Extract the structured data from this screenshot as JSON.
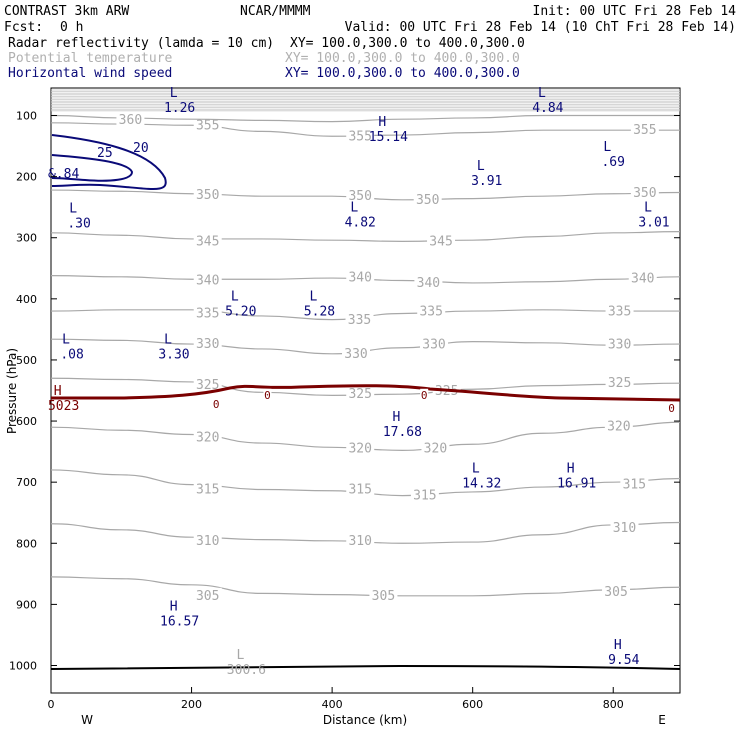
{
  "header": {
    "model": "CONTRAST  3km ARW",
    "org": "NCAR/MMMM",
    "init": "Init: 00 UTC Fri 28 Feb 14",
    "fcst_label": "Fcst:",
    "fcst_value": "0 h",
    "valid": "Valid: 00 UTC Fri 28 Feb 14 (10 ChT Fri 28 Feb 14)",
    "fields": [
      {
        "name": "Radar reflectivity (lamda = 10 cm)",
        "xy": "XY= 100.0,300.0 to 400.0,300.0",
        "color": "#000000"
      },
      {
        "name": "Potential temperature",
        "xy": "XY= 100.0,300.0 to 400.0,300.0",
        "color": "#b0b0b0"
      },
      {
        "name": "Horizontal wind speed",
        "xy": "XY= 100.0,300.0 to 400.0,300.0",
        "color": "#0a0a78"
      }
    ]
  },
  "colors": {
    "theta": "#a8a8a8",
    "wind": "#0a0a78",
    "reflectivity": "#7a0000",
    "surface": "#000000"
  },
  "chart_data": {
    "type": "cross-section",
    "xlabel": "Distance (km)",
    "ylabel": "Pressure (hPa)",
    "xlim": [
      0,
      895
    ],
    "ylim": [
      1045,
      55
    ],
    "x_ticks": [
      0,
      200,
      400,
      600,
      800
    ],
    "y_ticks": [
      100,
      200,
      300,
      400,
      500,
      600,
      700,
      800,
      900,
      1000
    ],
    "left_end_label": "W",
    "right_end_label": "E",
    "theta_contours": [
      {
        "value": 305,
        "labels": [
          {
            "text": "305",
            "x": 223,
            "p": 886
          },
          {
            "text": "305",
            "x": 473,
            "p": 886
          },
          {
            "text": "305",
            "x": 804,
            "p": 880
          }
        ],
        "points": [
          [
            0,
            855
          ],
          [
            100,
            858
          ],
          [
            200,
            868
          ],
          [
            300,
            882
          ],
          [
            400,
            884
          ],
          [
            500,
            886
          ],
          [
            600,
            886
          ],
          [
            700,
            882
          ],
          [
            800,
            876
          ],
          [
            895,
            872
          ]
        ]
      },
      {
        "value": 310,
        "labels": [
          {
            "text": "310",
            "x": 223,
            "p": 796
          },
          {
            "text": "310",
            "x": 440,
            "p": 796
          },
          {
            "text": "310",
            "x": 816,
            "p": 775
          }
        ],
        "points": [
          [
            0,
            768
          ],
          [
            100,
            778
          ],
          [
            200,
            790
          ],
          [
            300,
            794
          ],
          [
            400,
            796
          ],
          [
            500,
            800
          ],
          [
            600,
            798
          ],
          [
            700,
            786
          ],
          [
            800,
            770
          ],
          [
            895,
            766
          ]
        ]
      },
      {
        "value": 315,
        "labels": [
          {
            "text": "315",
            "x": 223,
            "p": 712
          },
          {
            "text": "315",
            "x": 440,
            "p": 712
          },
          {
            "text": "315",
            "x": 532,
            "p": 722
          },
          {
            "text": "315",
            "x": 830,
            "p": 704
          }
        ],
        "points": [
          [
            0,
            680
          ],
          [
            100,
            688
          ],
          [
            200,
            704
          ],
          [
            300,
            712
          ],
          [
            400,
            714
          ],
          [
            500,
            722
          ],
          [
            600,
            716
          ],
          [
            700,
            708
          ],
          [
            800,
            700
          ],
          [
            895,
            694
          ]
        ]
      },
      {
        "value": 320,
        "labels": [
          {
            "text": "320",
            "x": 223,
            "p": 627
          },
          {
            "text": "320",
            "x": 440,
            "p": 645
          },
          {
            "text": "320",
            "x": 547,
            "p": 645
          },
          {
            "text": "320",
            "x": 808,
            "p": 609
          }
        ],
        "points": [
          [
            0,
            610
          ],
          [
            100,
            615
          ],
          [
            200,
            622
          ],
          [
            300,
            636
          ],
          [
            400,
            643
          ],
          [
            500,
            648
          ],
          [
            600,
            638
          ],
          [
            700,
            620
          ],
          [
            800,
            610
          ],
          [
            895,
            602
          ]
        ]
      },
      {
        "value": 325,
        "labels": [
          {
            "text": "325",
            "x": 223,
            "p": 541
          },
          {
            "text": "325",
            "x": 440,
            "p": 556
          },
          {
            "text": "325",
            "x": 563,
            "p": 551
          },
          {
            "text": "325",
            "x": 809,
            "p": 538
          }
        ],
        "points": [
          [
            0,
            530
          ],
          [
            100,
            532
          ],
          [
            200,
            536
          ],
          [
            300,
            553
          ],
          [
            400,
            558
          ],
          [
            500,
            556
          ],
          [
            600,
            548
          ],
          [
            700,
            542
          ],
          [
            800,
            540
          ],
          [
            895,
            538
          ]
        ]
      },
      {
        "value": 330,
        "labels": [
          {
            "text": "330",
            "x": 223,
            "p": 474
          },
          {
            "text": "330",
            "x": 434,
            "p": 490
          },
          {
            "text": "330",
            "x": 545,
            "p": 475
          },
          {
            "text": "330",
            "x": 809,
            "p": 475
          }
        ],
        "points": [
          [
            0,
            466
          ],
          [
            100,
            468
          ],
          [
            200,
            474
          ],
          [
            300,
            482
          ],
          [
            400,
            490
          ],
          [
            500,
            480
          ],
          [
            600,
            470
          ],
          [
            700,
            472
          ],
          [
            800,
            476
          ],
          [
            895,
            474
          ]
        ]
      },
      {
        "value": 335,
        "labels": [
          {
            "text": "335",
            "x": 223,
            "p": 424
          },
          {
            "text": "335",
            "x": 439,
            "p": 435
          },
          {
            "text": "335",
            "x": 541,
            "p": 421
          },
          {
            "text": "335",
            "x": 809,
            "p": 421
          }
        ],
        "points": [
          [
            0,
            420
          ],
          [
            100,
            418
          ],
          [
            200,
            418
          ],
          [
            300,
            428
          ],
          [
            400,
            434
          ],
          [
            500,
            424
          ],
          [
            600,
            420
          ],
          [
            700,
            418
          ],
          [
            800,
            420
          ],
          [
            895,
            420
          ]
        ]
      },
      {
        "value": 340,
        "labels": [
          {
            "text": "340",
            "x": 223,
            "p": 370
          },
          {
            "text": "340",
            "x": 440,
            "p": 365
          },
          {
            "text": "340",
            "x": 537,
            "p": 374
          },
          {
            "text": "340",
            "x": 842,
            "p": 367
          }
        ],
        "points": [
          [
            0,
            362
          ],
          [
            100,
            364
          ],
          [
            200,
            368
          ],
          [
            300,
            368
          ],
          [
            400,
            366
          ],
          [
            500,
            370
          ],
          [
            600,
            374
          ],
          [
            700,
            372
          ],
          [
            800,
            368
          ],
          [
            895,
            364
          ]
        ]
      },
      {
        "value": 345,
        "labels": [
          {
            "text": "345",
            "x": 223,
            "p": 306
          },
          {
            "text": "345",
            "x": 555,
            "p": 306
          }
        ],
        "points": [
          [
            0,
            292
          ],
          [
            100,
            296
          ],
          [
            200,
            302
          ],
          [
            300,
            302
          ],
          [
            400,
            304
          ],
          [
            500,
            306
          ],
          [
            600,
            304
          ],
          [
            700,
            298
          ],
          [
            800,
            292
          ],
          [
            895,
            290
          ]
        ]
      },
      {
        "value": 350,
        "labels": [
          {
            "text": "350",
            "x": 223,
            "p": 230
          },
          {
            "text": "350",
            "x": 440,
            "p": 232
          },
          {
            "text": "350",
            "x": 536,
            "p": 238
          },
          {
            "text": "350",
            "x": 845,
            "p": 227
          }
        ],
        "points": [
          [
            0,
            222
          ],
          [
            100,
            224
          ],
          [
            200,
            228
          ],
          [
            300,
            232
          ],
          [
            400,
            232
          ],
          [
            500,
            238
          ],
          [
            600,
            236
          ],
          [
            700,
            232
          ],
          [
            800,
            228
          ],
          [
            895,
            226
          ]
        ]
      },
      {
        "value": 355,
        "labels": [
          {
            "text": "355",
            "x": 223,
            "p": 116
          },
          {
            "text": "355",
            "x": 440,
            "p": 134
          },
          {
            "text": "355",
            "x": 845,
            "p": 124
          }
        ],
        "points": [
          [
            0,
            112
          ],
          [
            100,
            114
          ],
          [
            200,
            116
          ],
          [
            300,
            126
          ],
          [
            400,
            134
          ],
          [
            500,
            132
          ],
          [
            600,
            128
          ],
          [
            700,
            124
          ],
          [
            800,
            124
          ],
          [
            895,
            124
          ]
        ]
      },
      {
        "value": 360,
        "labels": [
          {
            "text": "360",
            "x": 113,
            "p": 107
          }
        ],
        "points": [
          [
            0,
            100
          ],
          [
            100,
            104
          ],
          [
            200,
            106
          ],
          [
            300,
            108
          ],
          [
            400,
            110
          ],
          [
            500,
            106
          ],
          [
            600,
            104
          ],
          [
            700,
            100
          ],
          [
            800,
            100
          ],
          [
            895,
            100
          ]
        ]
      }
    ],
    "wind_contours": [
      {
        "value": 20,
        "label": {
          "text": "20",
          "x": 128,
          "p": 158
        }
      },
      {
        "value": 25,
        "label": {
          "text": "25",
          "x": 72,
          "p": 162
        }
      }
    ],
    "reflectivity_contours": [
      {
        "value": 0,
        "labels": [
          {
            "text": "0",
            "x": 235,
            "p": 572
          },
          {
            "text": "0",
            "x": 308,
            "p": 557
          },
          {
            "text": "0",
            "x": 531,
            "p": 557
          },
          {
            "text": "0",
            "x": 883,
            "p": 579
          }
        ]
      }
    ],
    "extrema": [
      {
        "field": "wind",
        "type": "L",
        "value": "1.26",
        "x": 183,
        "p": 75
      },
      {
        "field": "wind",
        "type": "L",
        "value": "4.84",
        "x": 707,
        "p": 75
      },
      {
        "field": "wind",
        "type": "H",
        "value": "15.14",
        "x": 480,
        "p": 122
      },
      {
        "field": "wind",
        "type": "L",
        "value": ".69",
        "x": 800,
        "p": 163
      },
      {
        "field": "wind",
        "type": "L",
        "value": "3.91",
        "x": 620,
        "p": 194
      },
      {
        "field": "wind",
        "type": "L",
        "value": ".30",
        "x": 40,
        "p": 264
      },
      {
        "field": "wind",
        "type": "L",
        "value": "4.82",
        "x": 440,
        "p": 262
      },
      {
        "field": "wind",
        "type": "L",
        "value": "3.01",
        "x": 858,
        "p": 262
      },
      {
        "field": "wind",
        "type": "L",
        "value": "5.20",
        "x": 270,
        "p": 408
      },
      {
        "field": "wind",
        "type": "L",
        "value": "5.28",
        "x": 382,
        "p": 408
      },
      {
        "field": "wind",
        "type": "L",
        "value": ".08",
        "x": 30,
        "p": 478
      },
      {
        "field": "wind",
        "type": "L",
        "value": "3.30",
        "x": 175,
        "p": 478
      },
      {
        "field": "wind",
        "type": "H",
        "value": "17.68",
        "x": 500,
        "p": 605
      },
      {
        "field": "wind",
        "type": "L",
        "value": "14.32",
        "x": 613,
        "p": 689
      },
      {
        "field": "wind",
        "type": "H",
        "value": "16.91",
        "x": 748,
        "p": 689
      },
      {
        "field": "wind",
        "type": "H",
        "value": "16.57",
        "x": 183,
        "p": 915
      },
      {
        "field": "wind",
        "type": "H",
        "value": "9.54",
        "x": 815,
        "p": 978
      },
      {
        "field": "theta",
        "type": "L",
        "value": "300.6",
        "x": 278,
        "p": 994
      },
      {
        "field": "wind",
        "type": "",
        "value": "&.84",
        "x": 18,
        "p": 183
      },
      {
        "field": "reflectivity",
        "type": "H",
        "value": "5023",
        "x": 18,
        "p": 562
      }
    ]
  }
}
